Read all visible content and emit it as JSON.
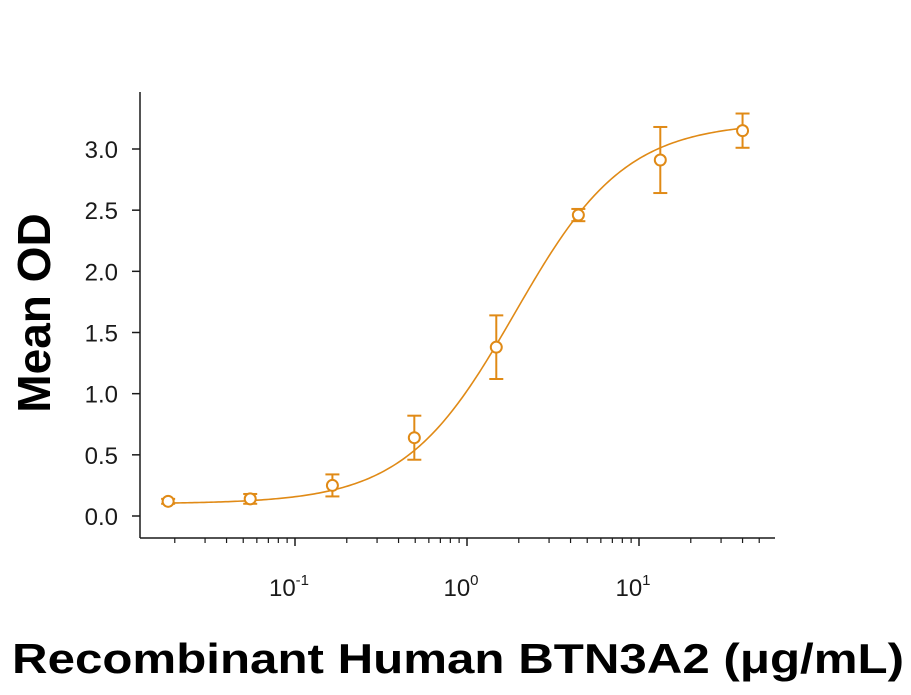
{
  "chart_data": {
    "type": "scatter",
    "title": "",
    "xlabel": "Recombinant Human BTN3A2 (μg/mL)",
    "ylabel": "Mean OD",
    "x_scale": "log",
    "xlim": [
      0.013,
      50
    ],
    "ylim": [
      0,
      3.45
    ],
    "y_ticks": [
      0.0,
      0.5,
      1.0,
      1.5,
      2.0,
      2.5,
      3.0
    ],
    "y_tick_labels": [
      "0.0",
      "0.5",
      "1.0",
      "1.5",
      "2.0",
      "2.5",
      "3.0"
    ],
    "x_ticks": [
      {
        "value": 0.1,
        "base": "10",
        "exp": "-1"
      },
      {
        "value": 1,
        "base": "10",
        "exp": "0"
      },
      {
        "value": 10,
        "base": "10",
        "exp": "1"
      }
    ],
    "grid": false,
    "series": [
      {
        "color": "#E08A16",
        "marker": "open-circle",
        "points": [
          {
            "x": 0.0183,
            "y": 0.12,
            "err": 0.02
          },
          {
            "x": 0.0549,
            "y": 0.14,
            "err": 0.04
          },
          {
            "x": 0.165,
            "y": 0.25,
            "err": 0.09
          },
          {
            "x": 0.494,
            "y": 0.64,
            "err": 0.18
          },
          {
            "x": 1.48,
            "y": 1.38,
            "err": 0.26
          },
          {
            "x": 4.44,
            "y": 2.46,
            "err": 0.05
          },
          {
            "x": 13.3,
            "y": 2.91,
            "err": 0.27
          },
          {
            "x": 40.0,
            "y": 3.15,
            "err": 0.14
          }
        ],
        "fit": {
          "model": "4PL",
          "bottom": 0.1,
          "top": 3.22,
          "ec50": 1.9,
          "hill": 1.35
        }
      }
    ]
  }
}
